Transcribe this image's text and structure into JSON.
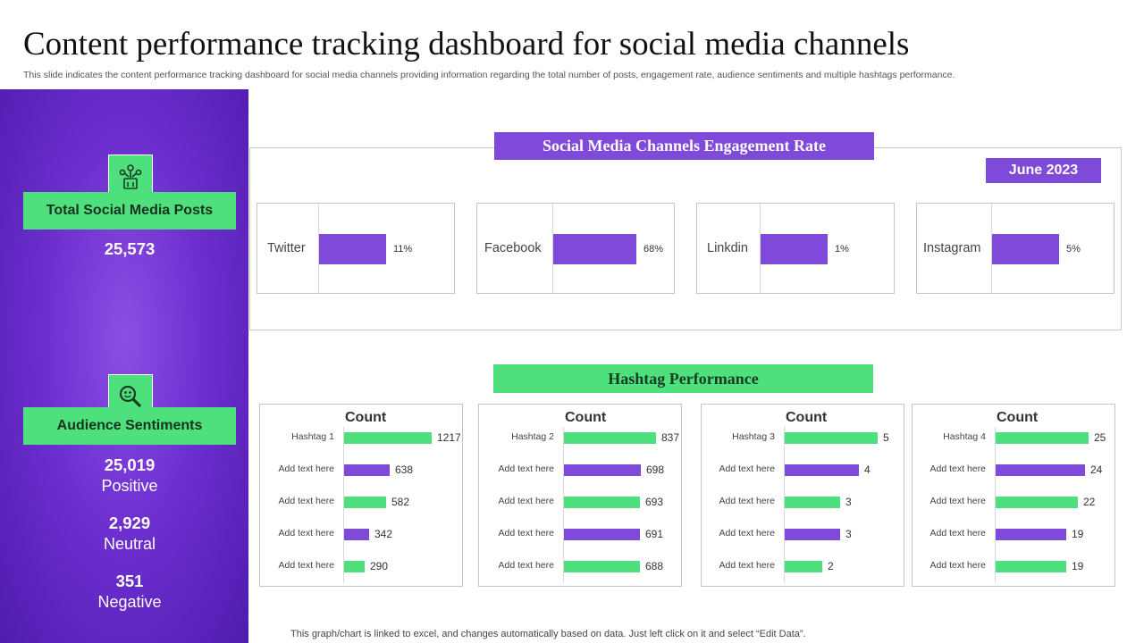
{
  "header": {
    "title": "Content performance tracking dashboard for social media channels",
    "subtitle": "This slide indicates the content performance tracking dashboard for social media channels providing information regarding the total number of posts, engagement rate, audience sentiments and multiple hashtags performance."
  },
  "sidebar": {
    "posts_icon": "social-network-icon",
    "posts_label": "Total Social Media Posts",
    "posts_value": "25,573",
    "sentiment_icon": "magnifier-sentiment-icon",
    "sentiment_label": "Audience Sentiments",
    "positive_value": "25,019",
    "positive_label": "Positive",
    "neutral_value": "2,929",
    "neutral_label": "Neutral",
    "negative_value": "351",
    "negative_label": "Negative"
  },
  "engagement": {
    "banner": "Social Media Channels Engagement Rate",
    "date": "June 2023"
  },
  "hashtags": {
    "banner": "Hashtag Performance"
  },
  "footer": {
    "note": "This graph/chart is linked to excel,  and changes automatically based on data. Just left click on it and select “Edit Data”."
  },
  "colors": {
    "purple": "#7f49d9",
    "green": "#4ee07d"
  },
  "chart_data": [
    {
      "type": "bar",
      "orientation": "horizontal",
      "categories": [
        "Twitter"
      ],
      "values": [
        11
      ],
      "value_labels": [
        "11%"
      ],
      "unit": "%"
    },
    {
      "type": "bar",
      "orientation": "horizontal",
      "categories": [
        "Facebook"
      ],
      "values": [
        68
      ],
      "value_labels": [
        "68%"
      ],
      "unit": "%"
    },
    {
      "type": "bar",
      "orientation": "horizontal",
      "categories": [
        "Linkdin"
      ],
      "values": [
        1
      ],
      "value_labels": [
        "1%"
      ],
      "unit": "%"
    },
    {
      "type": "bar",
      "orientation": "horizontal",
      "categories": [
        "Instagram"
      ],
      "values": [
        5
      ],
      "value_labels": [
        "5%"
      ],
      "unit": "%"
    },
    {
      "type": "bar",
      "orientation": "horizontal",
      "title": "Count",
      "categories": [
        "Hashtag 1",
        "Add text here",
        "Add text here",
        "Add text here",
        "Add text here"
      ],
      "values": [
        1217,
        638,
        582,
        342,
        290
      ],
      "bar_colors": [
        "#4ee07d",
        "#7f49d9",
        "#4ee07d",
        "#7f49d9",
        "#4ee07d"
      ]
    },
    {
      "type": "bar",
      "orientation": "horizontal",
      "title": "Count",
      "categories": [
        "Hashtag 2",
        "Add text here",
        "Add text here",
        "Add text here",
        "Add text here"
      ],
      "values": [
        837,
        698,
        693,
        691,
        688
      ],
      "bar_colors": [
        "#4ee07d",
        "#7f49d9",
        "#4ee07d",
        "#7f49d9",
        "#4ee07d"
      ]
    },
    {
      "type": "bar",
      "orientation": "horizontal",
      "title": "Count",
      "categories": [
        "Hashtag 3",
        "Add text here",
        "Add text here",
        "Add text here",
        "Add text here"
      ],
      "values": [
        5,
        4,
        3,
        3,
        2
      ],
      "bar_colors": [
        "#4ee07d",
        "#7f49d9",
        "#4ee07d",
        "#7f49d9",
        "#4ee07d"
      ]
    },
    {
      "type": "bar",
      "orientation": "horizontal",
      "title": "Count",
      "categories": [
        "Hashtag 4",
        "Add text here",
        "Add text here",
        "Add text here",
        "Add text here"
      ],
      "values": [
        25,
        24,
        22,
        19,
        19
      ],
      "bar_colors": [
        "#4ee07d",
        "#7f49d9",
        "#4ee07d",
        "#7f49d9",
        "#4ee07d"
      ]
    }
  ]
}
